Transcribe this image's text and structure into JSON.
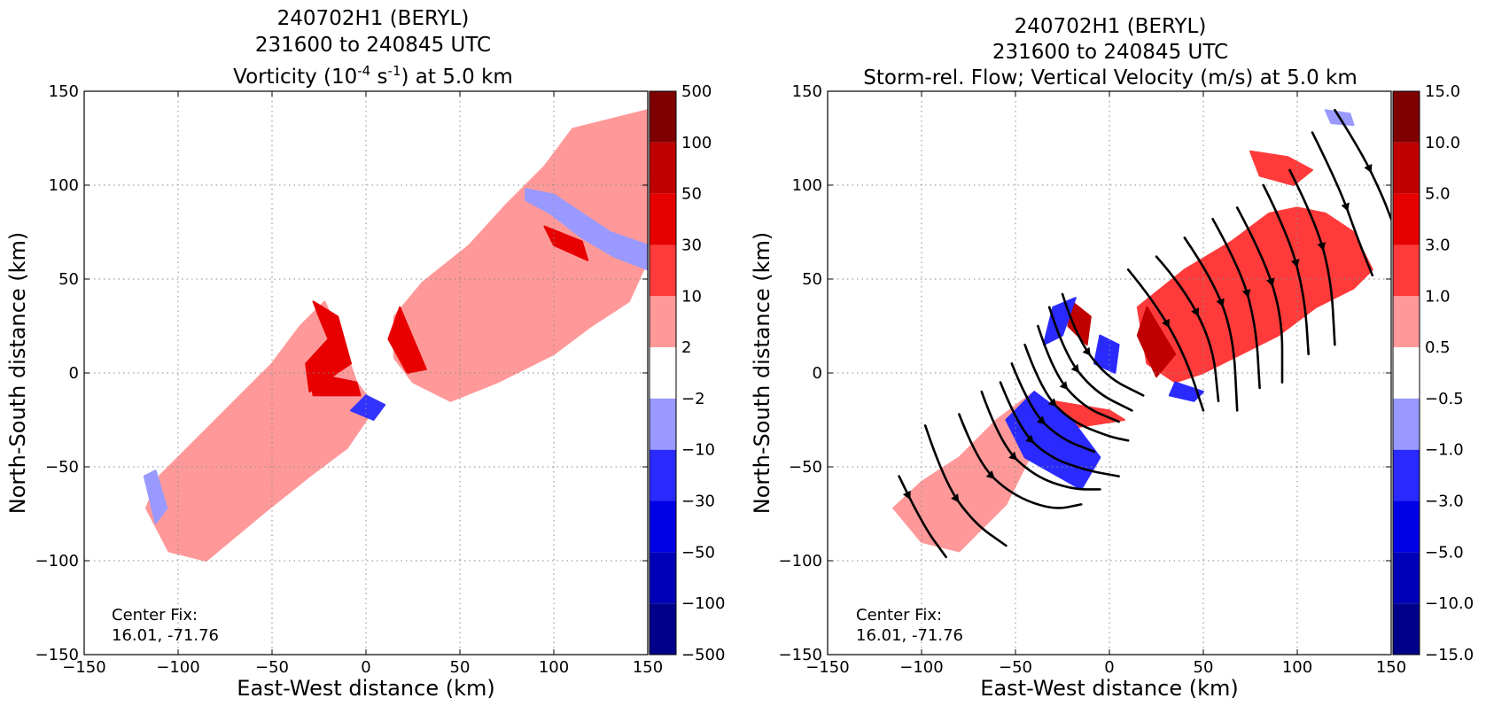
{
  "figure": {
    "panels": [
      {
        "title_line1": "240702H1 (BERYL)",
        "title_line2": "231600 to 240845 UTC",
        "title_line3": {
          "prefix": "Vorticity (10",
          "sup1": "-4",
          "mid": " s",
          "sup2": "-1",
          "suffix": ") at 5.0 km"
        },
        "xlabel": "East-West distance (km)",
        "ylabel": "North-South distance (km)",
        "center_fix_label": "Center Fix:",
        "center_fix_value": "16.01, -71.76",
        "colorbar_labels": [
          "500",
          "100",
          "50",
          "30",
          "10",
          "2",
          "−2",
          "−10",
          "−30",
          "−50",
          "−100",
          "−500"
        ]
      },
      {
        "title_line1": "240702H1 (BERYL)",
        "title_line2": "231600 to 240845 UTC",
        "title_line3": "Storm-rel. Flow; Vertical Velocity (m/s) at 5.0 km",
        "xlabel": "East-West distance (km)",
        "ylabel": "North-South distance (km)",
        "center_fix_label": "Center Fix:",
        "center_fix_value": "16.01, -71.76",
        "colorbar_labels": [
          "15.0",
          "10.0",
          "5.0",
          "3.0",
          "1.0",
          "0.5",
          "−0.5",
          "−1.0",
          "−3.0",
          "−5.0",
          "−10.0",
          "−15.0"
        ]
      }
    ]
  },
  "chart_data": [
    {
      "type": "heatmap",
      "title": "240702H1 (BERYL) 231600 to 240845 UTC Vorticity (10^-4 s^-1) at 5.0 km",
      "xlabel": "East-West distance (km)",
      "ylabel": "North-South distance (km)",
      "xlim": [
        -150,
        150
      ],
      "ylim": [
        -150,
        150
      ],
      "xticks": [
        -150,
        -100,
        -50,
        0,
        50,
        100,
        150
      ],
      "yticks": [
        -150,
        -100,
        -50,
        0,
        50,
        100,
        150
      ],
      "xtick_labels": [
        "−150",
        "−100",
        "−50",
        "0",
        "50",
        "100",
        "150"
      ],
      "ytick_labels": [
        "−150",
        "−100",
        "−50",
        "0",
        "50",
        "100",
        "150"
      ],
      "grid": true,
      "colorbar_levels": [
        -500,
        -100,
        -50,
        -30,
        -10,
        -2,
        2,
        10,
        30,
        50,
        100,
        500
      ],
      "colorbar_colors": [
        "#00008b",
        "#0000b8",
        "#0000e6",
        "#2a2aff",
        "#9999ff",
        "#ffffff",
        "#ff9999",
        "#ff3a3a",
        "#e60000",
        "#c00000",
        "#7f0000"
      ],
      "regions": [
        {
          "level": "2 to 10",
          "color": "#ff9999",
          "points": [
            [
              -117,
              -72
            ],
            [
              -110,
              -55
            ],
            [
              -95,
              -40
            ],
            [
              -75,
              -20
            ],
            [
              -50,
              5
            ],
            [
              -35,
              25
            ],
            [
              -22,
              38
            ],
            [
              -12,
              15
            ],
            [
              -5,
              -5
            ],
            [
              5,
              -18
            ],
            [
              -10,
              -40
            ],
            [
              -30,
              -55
            ],
            [
              -55,
              -75
            ],
            [
              -85,
              -100
            ],
            [
              -105,
              -95
            ]
          ]
        },
        {
          "level": "2 to 10",
          "color": "#ff9999",
          "points": [
            [
              15,
              30
            ],
            [
              30,
              48
            ],
            [
              55,
              68
            ],
            [
              75,
              90
            ],
            [
              95,
              110
            ],
            [
              110,
              130
            ],
            [
              150,
              140
            ],
            [
              150,
              60
            ],
            [
              140,
              38
            ],
            [
              120,
              25
            ],
            [
              100,
              10
            ],
            [
              70,
              -5
            ],
            [
              45,
              -15
            ],
            [
              25,
              -5
            ],
            [
              15,
              8
            ]
          ]
        },
        {
          "level": "-10 to -2",
          "color": "#9999ff",
          "points": [
            [
              85,
              98
            ],
            [
              100,
              95
            ],
            [
              115,
              85
            ],
            [
              130,
              75
            ],
            [
              150,
              68
            ],
            [
              150,
              55
            ],
            [
              132,
              62
            ],
            [
              115,
              72
            ],
            [
              98,
              85
            ],
            [
              85,
              92
            ]
          ]
        },
        {
          "level": "-10 to -2",
          "color": "#9999ff",
          "points": [
            [
              -118,
              -55
            ],
            [
              -112,
              -52
            ],
            [
              -106,
              -72
            ],
            [
              -112,
              -80
            ]
          ]
        },
        {
          "level": "-30 to -10",
          "color": "#3333ff",
          "points": [
            [
              -8,
              -20
            ],
            [
              0,
              -12
            ],
            [
              10,
              -17
            ],
            [
              4,
              -25
            ]
          ]
        },
        {
          "level": "10 to 30",
          "color": "#e80000",
          "points": [
            [
              -28,
              38
            ],
            [
              -15,
              30
            ],
            [
              -8,
              5
            ],
            [
              -30,
              -10
            ],
            [
              -32,
              5
            ],
            [
              -20,
              18
            ],
            [
              -25,
              30
            ]
          ]
        },
        {
          "level": "10 to 30",
          "color": "#e80000",
          "points": [
            [
              -30,
              0
            ],
            [
              -5,
              -5
            ],
            [
              -3,
              -12
            ],
            [
              -28,
              -12
            ]
          ]
        },
        {
          "level": "10 to 30",
          "color": "#e80000",
          "points": [
            [
              18,
              35
            ],
            [
              32,
              2
            ],
            [
              22,
              0
            ],
            [
              12,
              18
            ]
          ]
        },
        {
          "level": "10 to 30",
          "color": "#e80000",
          "points": [
            [
              95,
              78
            ],
            [
              115,
              70
            ],
            [
              118,
              60
            ],
            [
              100,
              68
            ]
          ]
        }
      ]
    },
    {
      "type": "heatmap",
      "title": "240702H1 (BERYL) 231600 to 240845 UTC Storm-rel. Flow; Vertical Velocity (m/s) at 5.0 km",
      "xlabel": "East-West distance (km)",
      "ylabel": "North-South distance (km)",
      "xlim": [
        -150,
        150
      ],
      "ylim": [
        -150,
        150
      ],
      "xticks": [
        -150,
        -100,
        -50,
        0,
        50,
        100,
        150
      ],
      "yticks": [
        -150,
        -100,
        -50,
        0,
        50,
        100,
        150
      ],
      "xtick_labels": [
        "−150",
        "−100",
        "−50",
        "0",
        "50",
        "100",
        "150"
      ],
      "ytick_labels": [
        "−150",
        "−100",
        "−50",
        "0",
        "50",
        "100",
        "150"
      ],
      "grid": true,
      "colorbar_levels": [
        -15,
        -10,
        -5,
        -3,
        -1,
        -0.5,
        0.5,
        1,
        3,
        5,
        10,
        15
      ],
      "colorbar_colors": [
        "#00008b",
        "#0000b8",
        "#0000e6",
        "#2a2aff",
        "#9999ff",
        "#ffffff",
        "#ff9999",
        "#ff3a3a",
        "#e60000",
        "#c00000",
        "#7f0000"
      ],
      "regions": [
        {
          "level": "0.5 to 1.0",
          "color": "#ff9999",
          "points": [
            [
              -115,
              -72
            ],
            [
              -100,
              -58
            ],
            [
              -80,
              -45
            ],
            [
              -60,
              -25
            ],
            [
              -40,
              -10
            ],
            [
              -40,
              -40
            ],
            [
              -55,
              -70
            ],
            [
              -80,
              -95
            ],
            [
              -100,
              -90
            ]
          ]
        },
        {
          "level": "1.0 to 3.0",
          "color": "#ff3a3a",
          "points": [
            [
              15,
              35
            ],
            [
              40,
              55
            ],
            [
              65,
              70
            ],
            [
              85,
              85
            ],
            [
              100,
              88
            ],
            [
              115,
              85
            ],
            [
              130,
              75
            ],
            [
              140,
              55
            ],
            [
              130,
              45
            ],
            [
              110,
              35
            ],
            [
              90,
              20
            ],
            [
              70,
              10
            ],
            [
              50,
              0
            ],
            [
              35,
              -5
            ],
            [
              20,
              5
            ]
          ]
        },
        {
          "level": "1.0 to 3.0",
          "color": "#ff3a3a",
          "points": [
            [
              75,
              118
            ],
            [
              95,
              115
            ],
            [
              108,
              108
            ],
            [
              98,
              100
            ],
            [
              80,
              105
            ]
          ]
        },
        {
          "level": "5.0 to 10.0",
          "color": "#c00000",
          "points": [
            [
              20,
              35
            ],
            [
              35,
              10
            ],
            [
              25,
              -2
            ],
            [
              15,
              20
            ]
          ]
        },
        {
          "level": "5.0 to 10.0",
          "color": "#c00000",
          "points": [
            [
              -20,
              38
            ],
            [
              -10,
              30
            ],
            [
              -12,
              15
            ],
            [
              -22,
              25
            ]
          ]
        },
        {
          "level": "1.0 to 3.0",
          "color": "#ff3a3a",
          "points": [
            [
              -30,
              -15
            ],
            [
              0,
              -20
            ],
            [
              8,
              -25
            ],
            [
              -25,
              -30
            ]
          ]
        },
        {
          "level": "-3.0 to -1.0",
          "color": "#2a2aff",
          "points": [
            [
              -40,
              -10
            ],
            [
              -20,
              -25
            ],
            [
              -5,
              -45
            ],
            [
              -15,
              -62
            ],
            [
              -45,
              -45
            ],
            [
              -55,
              -25
            ]
          ]
        },
        {
          "level": "-3.0 to -1.0",
          "color": "#2a2aff",
          "points": [
            [
              -5,
              20
            ],
            [
              5,
              15
            ],
            [
              3,
              0
            ],
            [
              -8,
              5
            ]
          ]
        },
        {
          "level": "-3.0 to -1.0",
          "color": "#2a2aff",
          "points": [
            [
              -30,
              35
            ],
            [
              -18,
              40
            ],
            [
              -25,
              20
            ],
            [
              -35,
              15
            ]
          ]
        },
        {
          "level": "-3.0 to -1.0",
          "color": "#2a2aff",
          "points": [
            [
              35,
              -5
            ],
            [
              50,
              -10
            ],
            [
              45,
              -15
            ],
            [
              32,
              -12
            ]
          ]
        },
        {
          "level": "-1.0 to -0.5",
          "color": "#9999ff",
          "points": [
            [
              115,
              140
            ],
            [
              128,
              138
            ],
            [
              130,
              132
            ],
            [
              118,
              133
            ]
          ]
        }
      ],
      "streamlines": [
        [
          [
            -112,
            -55
          ],
          [
            -100,
            -80
          ],
          [
            -87,
            -98
          ]
        ],
        [
          [
            -98,
            -28
          ],
          [
            -88,
            -58
          ],
          [
            -72,
            -80
          ],
          [
            -55,
            -92
          ]
        ],
        [
          [
            -80,
            -22
          ],
          [
            -70,
            -48
          ],
          [
            -52,
            -65
          ],
          [
            -30,
            -73
          ],
          [
            -15,
            -70
          ]
        ],
        [
          [
            -68,
            -10
          ],
          [
            -58,
            -38
          ],
          [
            -40,
            -55
          ],
          [
            -20,
            -62
          ],
          [
            -5,
            -62
          ]
        ],
        [
          [
            -58,
            -5
          ],
          [
            -48,
            -30
          ],
          [
            -32,
            -45
          ],
          [
            -12,
            -52
          ],
          [
            5,
            -55
          ]
        ],
        [
          [
            -52,
            5
          ],
          [
            -42,
            -20
          ],
          [
            -26,
            -35
          ],
          [
            -8,
            -42
          ]
        ],
        [
          [
            -45,
            15
          ],
          [
            -36,
            -10
          ],
          [
            -20,
            -26
          ],
          [
            0,
            -34
          ],
          [
            10,
            -36
          ]
        ],
        [
          [
            -38,
            25
          ],
          [
            -30,
            0
          ],
          [
            -14,
            -18
          ],
          [
            5,
            -26
          ]
        ],
        [
          [
            -32,
            35
          ],
          [
            -24,
            10
          ],
          [
            -8,
            -10
          ],
          [
            12,
            -20
          ]
        ],
        [
          [
            -25,
            42
          ],
          [
            -18,
            20
          ],
          [
            -2,
            -2
          ],
          [
            18,
            -12
          ]
        ],
        [
          [
            10,
            55
          ],
          [
            24,
            38
          ],
          [
            40,
            10
          ],
          [
            50,
            -20
          ]
        ],
        [
          [
            25,
            62
          ],
          [
            40,
            45
          ],
          [
            55,
            15
          ],
          [
            58,
            -15
          ]
        ],
        [
          [
            40,
            72
          ],
          [
            55,
            50
          ],
          [
            66,
            20
          ],
          [
            68,
            -20
          ]
        ],
        [
          [
            55,
            82
          ],
          [
            70,
            55
          ],
          [
            78,
            25
          ],
          [
            80,
            -8
          ]
        ],
        [
          [
            68,
            88
          ],
          [
            82,
            62
          ],
          [
            92,
            30
          ],
          [
            92,
            -5
          ]
        ],
        [
          [
            82,
            100
          ],
          [
            96,
            72
          ],
          [
            104,
            40
          ],
          [
            106,
            10
          ]
        ],
        [
          [
            96,
            108
          ],
          [
            110,
            80
          ],
          [
            118,
            50
          ],
          [
            120,
            15
          ]
        ],
        [
          [
            108,
            128
          ],
          [
            122,
            100
          ],
          [
            132,
            72
          ],
          [
            140,
            52
          ]
        ],
        [
          [
            120,
            140
          ],
          [
            134,
            118
          ],
          [
            145,
            95
          ],
          [
            150,
            82
          ]
        ]
      ]
    }
  ]
}
